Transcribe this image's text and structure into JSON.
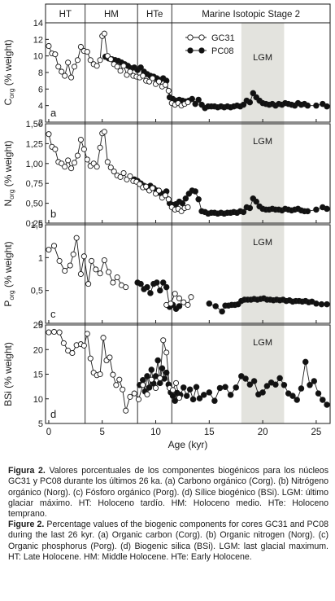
{
  "chart_data": {
    "type": "scatter",
    "x_axis": {
      "label": "Age (kyr)",
      "range": [
        -0.3,
        26.3
      ],
      "ticks": [
        0,
        5,
        10,
        15,
        20,
        25
      ],
      "tick_labels": [
        "0",
        "5",
        "10",
        "15",
        "20",
        "25"
      ]
    },
    "periods": [
      {
        "label": "HT",
        "range": [
          -0.3,
          3.4
        ]
      },
      {
        "label": "HM",
        "range": [
          3.4,
          8.3
        ]
      },
      {
        "label": "HTe",
        "range": [
          8.3,
          11.5
        ]
      },
      {
        "label": "Marine Isotopic Stage 2",
        "range": [
          11.5,
          26.3
        ]
      }
    ],
    "lgm": {
      "label": "LGM",
      "range": [
        18,
        22
      ]
    },
    "legend": {
      "position": "top-right",
      "entries": [
        "GC31",
        "PC08"
      ]
    },
    "panels": [
      {
        "id": "corg",
        "letter": "a",
        "ylabel": "C",
        "ylabel_sub": "org",
        "ylabel_suffix": " (% weight)",
        "ylim": [
          2,
          14
        ],
        "yticks": [
          2,
          4,
          6,
          8,
          10,
          12,
          14
        ],
        "ytick_labels": [
          "2",
          "4",
          "6",
          "8",
          "10",
          "12",
          "14"
        ],
        "series": [
          {
            "name": "GC31",
            "style": "open",
            "x": [
              0,
              0.3,
              0.6,
              0.9,
              1.2,
              1.5,
              1.8,
              2.1,
              2.4,
              2.7,
              3.0,
              3.3,
              3.6,
              3.9,
              4.2,
              4.5,
              4.8,
              5.0,
              5.2,
              5.5,
              5.8,
              6.1,
              6.4,
              6.7,
              7.0,
              7.3,
              7.6,
              7.9,
              8.2,
              8.5,
              8.8,
              9.1,
              9.4,
              9.7,
              10.0,
              10.3,
              10.6,
              10.9,
              11.2,
              11.5,
              11.8,
              12.1,
              12.4,
              12.7,
              13.0
            ],
            "y": [
              11.2,
              10.3,
              10.2,
              8.7,
              8.1,
              7.6,
              9.2,
              7.4,
              8.7,
              9.5,
              11.1,
              10.6,
              10.5,
              9.5,
              9.0,
              8.8,
              9.5,
              12.4,
              12.7,
              10.0,
              9.6,
              9.0,
              8.7,
              8.2,
              8.8,
              7.7,
              8.1,
              7.6,
              7.5,
              7.4,
              7.6,
              7.0,
              6.9,
              7.3,
              6.6,
              6.9,
              6.3,
              6.5,
              5.8,
              4.3,
              4.1,
              4.3,
              4.0,
              4.2,
              4.4
            ]
          },
          {
            "name": "PC08",
            "style": "filled",
            "x": [
              5.3,
              5.6,
              5.9,
              6.2,
              6.5,
              6.8,
              7.1,
              7.4,
              7.7,
              8.0,
              8.3,
              8.6,
              8.9,
              9.2,
              9.5,
              9.8,
              10.1,
              10.4,
              10.7,
              11.0,
              11.3,
              11.6,
              11.9,
              12.2,
              12.5,
              12.8,
              13.1,
              13.4,
              13.7,
              14.0,
              14.3,
              14.6,
              14.9,
              15.2,
              15.5,
              15.8,
              16.1,
              16.4,
              16.7,
              17.0,
              17.3,
              17.6,
              17.9,
              18.2,
              18.5,
              18.8,
              19.1,
              19.4,
              19.7,
              20.0,
              20.3,
              20.6,
              20.9,
              21.2,
              21.5,
              21.8,
              22.1,
              22.4,
              22.7,
              23.0,
              23.3,
              23.6,
              23.9,
              24.2,
              25.0,
              25.6,
              26.0
            ],
            "y": [
              9.9,
              9.7,
              9.6,
              9.5,
              9.4,
              9.2,
              9.0,
              8.8,
              8.5,
              8.6,
              8.3,
              8.6,
              8.1,
              7.8,
              7.6,
              7.5,
              7.3,
              7.1,
              7.3,
              7.0,
              5.0,
              4.8,
              4.6,
              4.7,
              4.6,
              4.5,
              4.6,
              4.8,
              4.2,
              4.7,
              4.1,
              3.7,
              3.9,
              3.9,
              3.9,
              3.8,
              3.9,
              3.8,
              3.9,
              3.8,
              3.9,
              4.0,
              3.9,
              4.1,
              4.6,
              4.4,
              5.5,
              5.0,
              4.6,
              4.3,
              4.2,
              4.1,
              4.2,
              4.0,
              4.2,
              4.1,
              4.3,
              4.2,
              4.1,
              4.0,
              4.3,
              4.1,
              4.2,
              4.0,
              4.0,
              4.2,
              3.9
            ]
          }
        ]
      },
      {
        "id": "norg",
        "letter": "b",
        "ylabel": "N",
        "ylabel_sub": "org",
        "ylabel_suffix": " (% weight)",
        "ylim": [
          0.25,
          1.5
        ],
        "yticks": [
          0.25,
          0.5,
          0.75,
          1.0,
          1.25,
          1.5
        ],
        "ytick_labels": [
          "0,25",
          "0,50",
          "0,75",
          "1,00",
          "1,25",
          "1,50"
        ],
        "series": [
          {
            "name": "GC31",
            "style": "open",
            "x": [
              0,
              0.3,
              0.6,
              0.9,
              1.2,
              1.5,
              1.8,
              2.1,
              2.4,
              2.7,
              3.0,
              3.3,
              3.6,
              3.9,
              4.2,
              4.5,
              4.8,
              5.0,
              5.2,
              5.5,
              5.8,
              6.1,
              6.4,
              6.7,
              7.0,
              7.3,
              7.6,
              7.9,
              8.2,
              8.5,
              8.8,
              9.1,
              9.4,
              9.7,
              10.0,
              10.3,
              10.6,
              10.9,
              11.2,
              11.5,
              11.8,
              12.1,
              12.4,
              12.7,
              13.0
            ],
            "y": [
              1.37,
              1.21,
              1.18,
              1.02,
              1.0,
              0.96,
              1.04,
              0.94,
              1.01,
              1.1,
              1.3,
              1.18,
              1.05,
              0.97,
              1.0,
              0.96,
              1.2,
              1.38,
              1.4,
              1.02,
              0.95,
              0.9,
              0.85,
              0.83,
              0.88,
              0.8,
              0.84,
              0.78,
              0.77,
              0.74,
              0.7,
              0.71,
              0.66,
              0.69,
              0.62,
              0.66,
              0.57,
              0.6,
              0.55,
              0.45,
              0.42,
              0.43,
              0.4,
              0.44,
              0.45
            ]
          },
          {
            "name": "PC08",
            "style": "filled",
            "x": [
              8.0,
              8.3,
              8.6,
              8.9,
              9.2,
              9.5,
              9.8,
              10.1,
              10.4,
              10.7,
              11.0,
              11.3,
              11.6,
              11.9,
              12.2,
              12.5,
              12.8,
              13.1,
              13.4,
              13.7,
              14.0,
              14.3,
              14.6,
              14.9,
              15.2,
              15.5,
              15.8,
              16.1,
              16.4,
              16.7,
              17.0,
              17.3,
              17.6,
              17.9,
              18.2,
              18.5,
              18.8,
              19.1,
              19.4,
              19.7,
              20.0,
              20.3,
              20.6,
              20.9,
              21.2,
              21.5,
              21.8,
              22.1,
              22.4,
              22.7,
              23.0,
              23.3,
              23.6,
              23.9,
              24.2,
              25.0,
              25.6,
              26.0
            ],
            "y": [
              0.8,
              0.78,
              0.75,
              0.72,
              0.7,
              0.72,
              0.69,
              0.66,
              0.63,
              0.62,
              0.65,
              0.5,
              0.48,
              0.49,
              0.52,
              0.5,
              0.56,
              0.62,
              0.66,
              0.65,
              0.55,
              0.4,
              0.39,
              0.37,
              0.38,
              0.38,
              0.37,
              0.38,
              0.37,
              0.38,
              0.38,
              0.39,
              0.38,
              0.4,
              0.39,
              0.45,
              0.44,
              0.56,
              0.52,
              0.46,
              0.43,
              0.42,
              0.42,
              0.43,
              0.42,
              0.42,
              0.41,
              0.43,
              0.42,
              0.41,
              0.42,
              0.43,
              0.41,
              0.4,
              0.4,
              0.42,
              0.45,
              0.43
            ]
          }
        ]
      },
      {
        "id": "porg",
        "letter": "c",
        "ylabel": "P",
        "ylabel_sub": "org",
        "ylabel_suffix": " (% weight)",
        "ylim": [
          0,
          1.5
        ],
        "yticks": [
          0,
          0.5,
          1,
          1.5
        ],
        "ytick_labels": [
          "0",
          "0,5",
          "1",
          "1,5"
        ],
        "series": [
          {
            "name": "GC31",
            "style": "open",
            "x": [
              0,
              0.5,
              1.0,
              1.5,
              2.0,
              2.3,
              2.6,
              3.0,
              3.3,
              3.7,
              4.0,
              4.4,
              4.8,
              5.2,
              5.6,
              6.0,
              6.4,
              6.8,
              7.2,
              11.0,
              11.4,
              11.8,
              12.2,
              12.6,
              13.0,
              13.3
            ],
            "y": [
              1.12,
              1.18,
              0.95,
              0.8,
              0.88,
              1.05,
              1.3,
              0.75,
              1.02,
              0.6,
              0.95,
              0.82,
              0.76,
              0.96,
              0.78,
              0.62,
              0.7,
              0.58,
              0.55,
              0.28,
              0.3,
              0.45,
              0.38,
              0.32,
              0.28,
              0.4
            ]
          },
          {
            "name": "PC08",
            "style": "filled",
            "x": [
              8.3,
              8.6,
              8.9,
              9.2,
              9.5,
              9.8,
              10.1,
              10.4,
              10.7,
              11.0,
              11.3,
              11.6,
              11.9,
              12.2,
              15.0,
              15.6,
              16.2,
              16.5,
              16.8,
              17.1,
              17.4,
              17.7,
              18.0,
              18.3,
              18.6,
              18.9,
              19.2,
              19.5,
              19.8,
              20.1,
              20.4,
              20.7,
              21.0,
              21.3,
              21.6,
              21.9,
              22.2,
              22.5,
              22.8,
              23.1,
              23.4,
              23.7,
              24.0,
              24.3,
              24.6,
              25.0,
              25.5,
              26.0
            ],
            "y": [
              0.62,
              0.6,
              0.52,
              0.55,
              0.46,
              0.6,
              0.62,
              0.5,
              0.62,
              0.55,
              0.25,
              0.28,
              0.22,
              0.26,
              0.3,
              0.26,
              0.18,
              0.27,
              0.27,
              0.28,
              0.28,
              0.29,
              0.34,
              0.36,
              0.36,
              0.36,
              0.37,
              0.36,
              0.37,
              0.38,
              0.36,
              0.36,
              0.35,
              0.36,
              0.35,
              0.36,
              0.34,
              0.35,
              0.33,
              0.34,
              0.34,
              0.33,
              0.34,
              0.32,
              0.33,
              0.3,
              0.29,
              0.29
            ]
          }
        ]
      },
      {
        "id": "bsi",
        "letter": "d",
        "ylabel": "BSi",
        "ylabel_sub": "",
        "ylabel_suffix": " (% weight)",
        "ylim": [
          5,
          25
        ],
        "yticks": [
          5,
          10,
          15,
          20,
          25
        ],
        "ytick_labels": [
          "5",
          "10",
          "15",
          "20",
          "25"
        ],
        "series": [
          {
            "name": "GC31",
            "style": "open",
            "x": [
              0,
              0.5,
              1.0,
              1.4,
              1.8,
              2.2,
              2.6,
              3.0,
              3.3,
              3.6,
              3.9,
              4.2,
              4.5,
              4.8,
              5.1,
              5.4,
              5.7,
              6.0,
              6.3,
              6.6,
              6.9,
              7.2,
              7.6,
              8.0,
              8.4,
              8.8,
              9.2,
              9.6,
              10.0,
              10.4,
              10.7,
              11.0,
              11.3,
              11.6,
              11.9,
              12.2
            ],
            "y": [
              23.5,
              23.6,
              23.5,
              21.3,
              19.8,
              19.3,
              20.9,
              21.1,
              20.8,
              23.2,
              18.2,
              15.3,
              14.8,
              15.0,
              22.4,
              17.8,
              18.4,
              14.9,
              12.8,
              13.9,
              11.9,
              7.6,
              10.4,
              11.1,
              9.9,
              12.8,
              10.9,
              13.9,
              12.2,
              14.2,
              21.9,
              19.4,
              12.2,
              11.8,
              13.2,
              10.2
            ]
          },
          {
            "name": "PC08",
            "style": "filled",
            "x": [
              8.5,
              8.8,
              9.0,
              9.2,
              9.4,
              9.6,
              9.8,
              10.0,
              10.2,
              10.4,
              10.6,
              10.8,
              11.0,
              11.2,
              11.4,
              11.6,
              11.8,
              12.0,
              12.3,
              12.6,
              12.9,
              13.2,
              13.5,
              13.8,
              14.1,
              14.5,
              15.0,
              15.5,
              16.0,
              16.5,
              17.0,
              17.5,
              18.0,
              18.4,
              18.8,
              19.2,
              19.6,
              20.0,
              20.4,
              20.8,
              21.2,
              21.6,
              22.0,
              22.4,
              22.8,
              23.2,
              23.6,
              24.0,
              24.4,
              24.8,
              25.2,
              25.6,
              26.0
            ],
            "y": [
              12.8,
              13.8,
              11.5,
              14.6,
              12.3,
              15.9,
              13.1,
              14.6,
              17.8,
              13.2,
              16.2,
              14.1,
              15.3,
              12.9,
              11.3,
              10.6,
              9.6,
              11.2,
              10.8,
              12.3,
              10.6,
              11.9,
              9.9,
              12.4,
              10.1,
              10.8,
              11.3,
              9.6,
              12.2,
              12.4,
              10.8,
              12.3,
              14.6,
              14.1,
              12.9,
              13.6,
              10.9,
              11.3,
              12.6,
              13.3,
              12.9,
              14.2,
              12.8,
              11.1,
              10.6,
              9.8,
              12.1,
              17.5,
              12.8,
              13.6,
              11.1,
              9.8,
              8.8
            ]
          }
        ]
      }
    ]
  },
  "captions": {
    "spanish": {
      "label": "Figura 2.",
      "text": " Valores porcentuales de los componentes biogénicos para los núcleos GC31 y PC08 durante los últimos 26 ka. (a) Carbono orgánico (Corg). (b) Nitrógeno orgánico (Norg). (c) Fósforo orgánico (Porg). (d) Sílice biogénico (BSi). LGM: último glaciar máximo. HT: Holoceno tardío. HM: Holoceno medio. HTe: Holoceno temprano."
    },
    "english": {
      "label": "Figure 2.",
      "text": " Percentage values of the biogenic components for cores GC31 and PC08 during the last 26 kyr. (a) Organic carbon (Corg). (b) Organic nitrogen (Norg). (c) Organic phosphorus (Porg). (d) Biogenic silica (BSi). LGM: last glacial maximum. HT: Late Holocene. HM: Middle Holocene. HTe: Early Holocene."
    }
  }
}
